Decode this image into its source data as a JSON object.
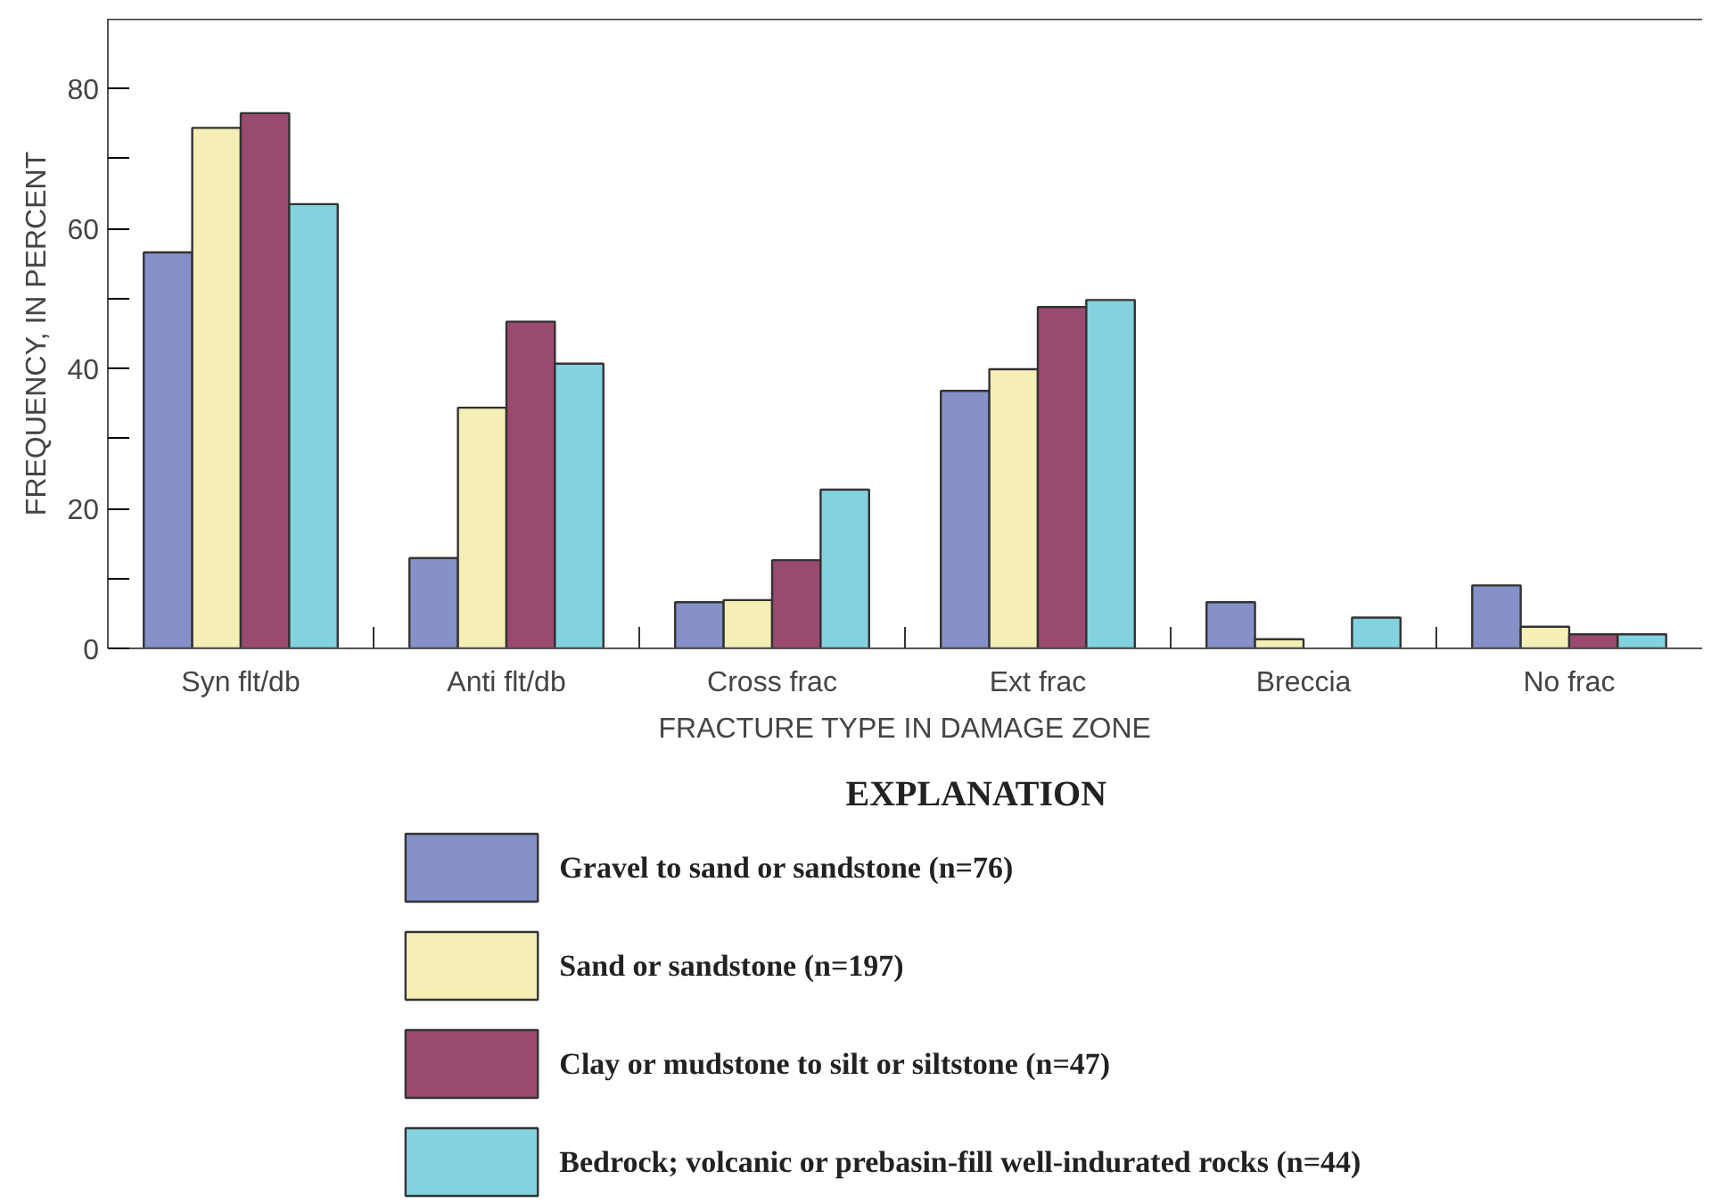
{
  "chart_data": {
    "type": "bar",
    "categories": [
      "Syn flt/db",
      "Anti flt/db",
      "Cross frac",
      "Ext frac",
      "Breccia",
      "No frac"
    ],
    "xlabel": "FRACTURE TYPE IN DAMAGE ZONE",
    "ylabel": "FREQUENCY, IN PERCENT",
    "ylim": [
      0,
      90
    ],
    "yticks": [
      0,
      {
        "value": 10,
        "label": null
      },
      20,
      {
        "value": 30,
        "label": null
      },
      40,
      {
        "value": 50,
        "label": null
      },
      60,
      {
        "value": 70,
        "label": null
      },
      80
    ],
    "legend": "bottom",
    "legend_title": "EXPLANATION",
    "grid": false,
    "series": [
      {
        "name": "Gravel to sand or sandstone (n=76)",
        "color": "#8591c8",
        "values": [
          56.6,
          12.9,
          6.6,
          36.8,
          6.6,
          9.0
        ]
      },
      {
        "name": "Sand or sandstone (n=197)",
        "color": "#f5efb5",
        "values": [
          74.4,
          34.4,
          6.9,
          39.9,
          1.3,
          3.1
        ]
      },
      {
        "name": "Clay or mudstone to silt or siltstone (n=47)",
        "color": "#9b4a6f",
        "values": [
          76.5,
          46.7,
          12.6,
          48.8,
          null,
          2.0
        ]
      },
      {
        "name": "Bedrock; volcanic or prebasin-fill well-indurated rocks (n=44)",
        "color": "#82d3df",
        "values": [
          63.5,
          40.7,
          22.7,
          49.8,
          4.4,
          2.0
        ]
      }
    ]
  }
}
